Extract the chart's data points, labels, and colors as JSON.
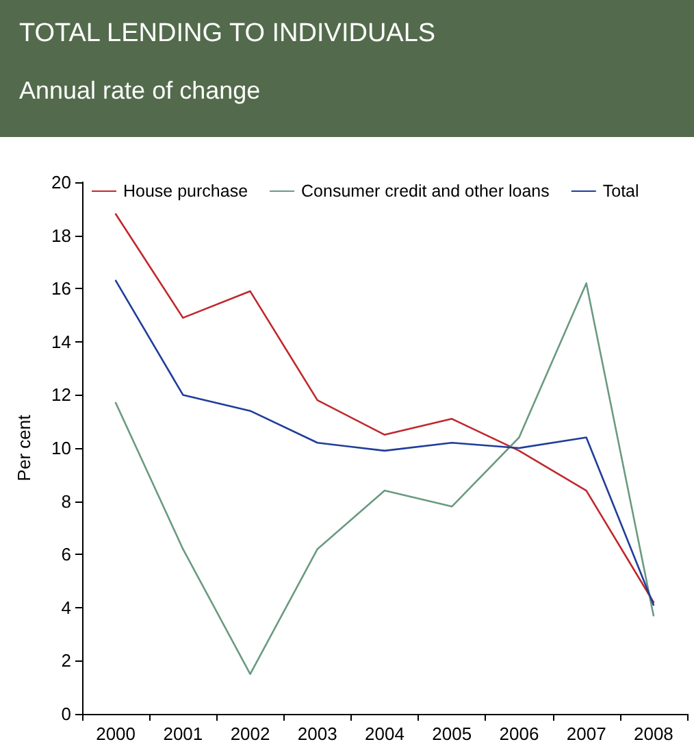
{
  "chart_data": {
    "type": "line",
    "title": "TOTAL LENDING TO INDIVIDUALS",
    "subtitle": "Annual rate of change",
    "ylabel": "Per cent",
    "categories": [
      "2000",
      "2001",
      "2002",
      "2003",
      "2004",
      "2005",
      "2006",
      "2007",
      "2008"
    ],
    "series": [
      {
        "name": "House purchase",
        "color": "#c0272d",
        "values": [
          18.8,
          14.9,
          15.9,
          11.8,
          10.5,
          11.1,
          9.9,
          8.4,
          4.2
        ]
      },
      {
        "name": "Consumer credit and other loans",
        "color": "#6a9a80",
        "values": [
          11.7,
          6.2,
          1.5,
          6.2,
          8.4,
          7.8,
          10.4,
          16.2,
          3.7
        ]
      },
      {
        "name": "Total",
        "color": "#1f3d99",
        "values": [
          16.3,
          12.0,
          11.4,
          10.2,
          9.9,
          10.2,
          10.0,
          10.4,
          4.1
        ]
      }
    ],
    "ylim": [
      0,
      20
    ],
    "yticks": [
      0,
      2,
      4,
      6,
      8,
      10,
      12,
      14,
      16,
      18,
      20
    ],
    "grid": false,
    "legend": "top",
    "marker": "none",
    "line_style": "solid"
  }
}
